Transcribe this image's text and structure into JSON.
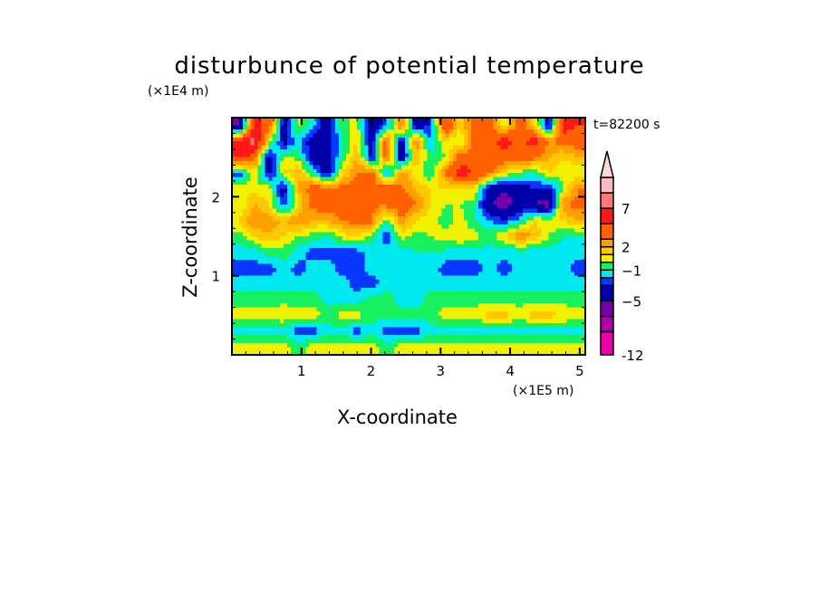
{
  "chart_data": {
    "type": "heatmap",
    "title": "disturbunce of potential temperature",
    "xlabel": "X-coordinate",
    "ylabel": "Z-coordinate",
    "x_unit": "(×1E5 m)",
    "y_unit": "(×1E4 m)",
    "annotation": "t=82200 s",
    "xlim": [
      0,
      5.08
    ],
    "ylim": [
      0,
      3.0
    ],
    "x_ticks": [
      1,
      2,
      3,
      4,
      5
    ],
    "x_tick_labels": [
      "1",
      "2",
      "3",
      "4",
      "5"
    ],
    "y_ticks": [
      1,
      2
    ],
    "y_tick_labels": [
      "1",
      "2"
    ],
    "colorbar": {
      "levels": [
        -12,
        -9,
        -7,
        -5,
        -3,
        -2,
        -1,
        0,
        1,
        2,
        3,
        5,
        7,
        9,
        11
      ],
      "colors": [
        "#e800a8",
        "#b000a8",
        "#7800a8",
        "#0000a8",
        "#0838ff",
        "#00e8f0",
        "#18f060",
        "#f0f000",
        "#ffc800",
        "#ffa000",
        "#ff6000",
        "#ff1818",
        "#ff7878",
        "#ffb8c0"
      ],
      "extend_max_color": "#ffd8d8",
      "labeled_levels": [
        -12,
        -5,
        -1,
        2,
        7
      ],
      "labels": [
        "-12",
        "−5",
        "−1",
        "2",
        "7"
      ]
    },
    "grid_rows_top_to_bottom": [
      [
        -6,
        6,
        4,
        -4,
        0.5,
        -1.5,
        -4,
        -0.5,
        0.5,
        -4,
        -2.5,
        3.5,
        -4,
        -3,
        5,
        1,
        4,
        3.5,
        0.5,
        4,
        1.5,
        -4,
        6,
        5
      ],
      [
        5,
        8,
        1,
        -4,
        -1.5,
        -4,
        -4,
        -1,
        1,
        -4,
        4,
        -4,
        3,
        -2,
        1,
        0,
        3.5,
        4,
        6,
        4,
        6,
        3,
        3.5,
        4
      ],
      [
        6,
        4,
        -4,
        0.5,
        -0.5,
        -4,
        -4,
        -1,
        2,
        -4,
        4,
        -5,
        2,
        -1,
        0,
        4,
        4,
        5,
        4,
        5,
        3.5,
        2,
        1,
        2
      ],
      [
        -3,
        1,
        -4,
        1,
        2,
        -1,
        -4,
        1,
        3,
        4,
        -3,
        3,
        0.5,
        -1,
        3,
        6,
        5,
        3,
        1,
        -0.5,
        -1,
        1,
        0.5,
        0
      ],
      [
        1,
        0.5,
        0.5,
        -4,
        2,
        4,
        3.5,
        3.5,
        4,
        3,
        4,
        3,
        2,
        1,
        1,
        1,
        1,
        -4,
        -5,
        -4,
        -3,
        -3.5,
        0,
        3
      ],
      [
        0,
        2,
        1,
        -3,
        1,
        3.5,
        4,
        4,
        4,
        3,
        3.5,
        4,
        3,
        1,
        0,
        0,
        -0.5,
        -5,
        -6,
        -4,
        -5,
        -6,
        3,
        3.5
      ],
      [
        1,
        3,
        2.5,
        2,
        3,
        2,
        2,
        3,
        3.5,
        3.5,
        -1,
        3,
        1,
        0.5,
        -0.5,
        0.5,
        -1,
        -2,
        -3,
        -1.5,
        1,
        0.5,
        1,
        2
      ],
      [
        -0.5,
        1,
        2,
        1,
        0,
        -0.5,
        -1,
        0.5,
        1,
        -0.5,
        -3,
        0.5,
        -0.5,
        0,
        0.5,
        1,
        0.5,
        -0.5,
        1,
        3,
        2,
        0,
        -1,
        -1
      ],
      [
        -1.5,
        -1.5,
        -0.5,
        -0.5,
        -1.5,
        -2.5,
        -2.5,
        -2.5,
        -2.5,
        -1.5,
        -1.5,
        -1.5,
        -1,
        -1,
        -1.2,
        -1.5,
        -1.5,
        -1.5,
        -1.5,
        -1.5,
        -1.5,
        -1.5,
        -1.5,
        -1.5
      ],
      [
        -2.5,
        -2.5,
        -2.5,
        -1.5,
        -2.5,
        -1.5,
        -1.5,
        -2.5,
        -2.5,
        -1.5,
        -1.5,
        -1.5,
        -1.5,
        -1.5,
        -2.5,
        -2.5,
        -2.5,
        -1.5,
        -2.5,
        -1.5,
        -1.5,
        -1.5,
        -1.5,
        -2.5
      ],
      [
        -1.5,
        -1.5,
        -1.5,
        -1.5,
        -1.5,
        -1.5,
        -1.5,
        -1.5,
        -2.5,
        -2.5,
        -1.5,
        -1.5,
        -1.5,
        -1.5,
        -1.5,
        -1.5,
        -1.5,
        -1.5,
        -1.5,
        -1.5,
        -1.5,
        -1.5,
        -1.5,
        -1.5
      ],
      [
        -0.5,
        -0.5,
        -0.5,
        -0.5,
        -0.5,
        -0.5,
        -1.5,
        -1.5,
        -1.5,
        -0.5,
        -0.5,
        -1.5,
        -1.5,
        -0.5,
        -0.5,
        -0.5,
        -0.5,
        -0.5,
        -0.5,
        -0.5,
        -0.5,
        -0.5,
        -0.5,
        -0.5
      ],
      [
        0.5,
        0.5,
        0.5,
        1,
        0.5,
        0.5,
        -0.5,
        0.5,
        0.5,
        -0.5,
        -0.5,
        -0.5,
        -0.5,
        -0.5,
        0.5,
        0.5,
        0.5,
        1.5,
        1.5,
        0.5,
        1.5,
        1.5,
        1,
        0.5
      ],
      [
        -1.5,
        -1.5,
        -1.5,
        -1.5,
        -2.5,
        -2.5,
        -1.5,
        -1.5,
        -2.5,
        -1.5,
        -2.5,
        -2.5,
        -2.5,
        -1.5,
        -1.5,
        -1.5,
        -1.5,
        -1.5,
        -1.5,
        -1.5,
        -1.5,
        -1.5,
        -1.5,
        -1.5
      ],
      [
        0.5,
        0.5,
        0.5,
        0.5,
        -0.5,
        0.5,
        0.5,
        0.5,
        0.5,
        0.5,
        -0.5,
        0.5,
        0.5,
        0.5,
        0.5,
        0.5,
        0.5,
        0.5,
        0.5,
        0.5,
        0.5,
        0.5,
        0.5,
        0.5
      ]
    ]
  }
}
